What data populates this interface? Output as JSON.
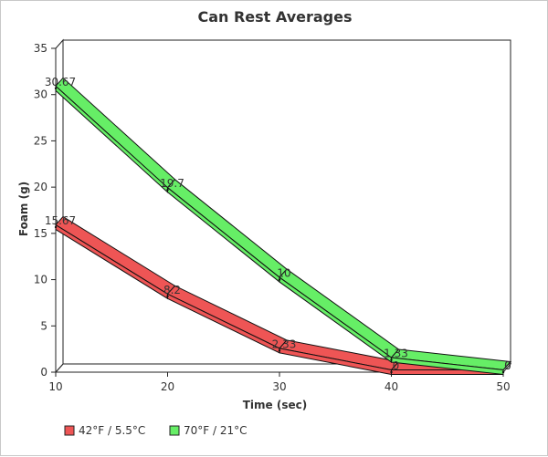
{
  "chart_data": {
    "type": "line",
    "title": "Can Rest Averages",
    "xlabel": "Time (sec)",
    "ylabel": "Foam (g)",
    "x": [
      10,
      20,
      30,
      40,
      50
    ],
    "xlim": [
      10,
      50
    ],
    "ylim": [
      0,
      35
    ],
    "yticks": [
      0,
      5,
      10,
      15,
      20,
      25,
      30,
      35
    ],
    "grid": false,
    "legend_position": "bottom-left",
    "series": [
      {
        "name": "42°F / 5.5°C",
        "values": [
          15.67,
          8.2,
          2.33,
          0,
          0
        ],
        "labels": [
          "15.67",
          "8.2",
          "2.33",
          "0",
          "0"
        ],
        "color": "#ee5555"
      },
      {
        "name": "70°F / 21°C",
        "values": [
          30.67,
          19.7,
          10,
          1.33,
          0
        ],
        "labels": [
          "30.67",
          "19.7",
          "10",
          "1.33",
          "0"
        ],
        "color": "#66ee66"
      }
    ]
  }
}
